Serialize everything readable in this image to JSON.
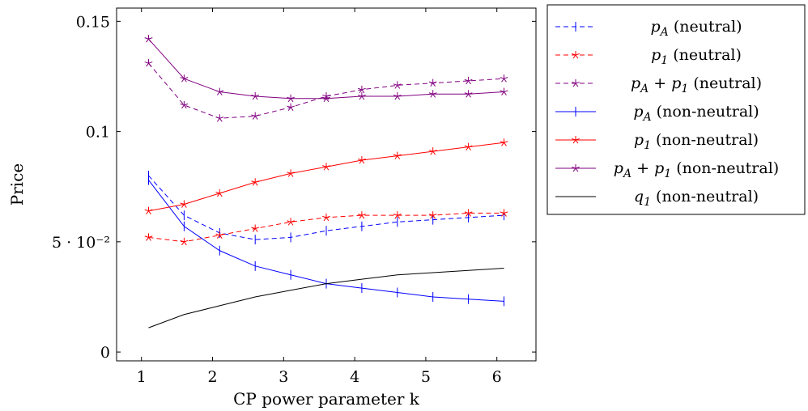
{
  "chart_data": {
    "type": "line",
    "title": "",
    "xlabel": "CP power parameter k",
    "ylabel": "Price",
    "xlim": [
      0.65,
      6.55
    ],
    "ylim": [
      -0.004,
      0.156
    ],
    "grid": false,
    "legend_position": "outside-top-right",
    "x_ticks": [
      1,
      2,
      3,
      4,
      5,
      6
    ],
    "x_tick_labels": [
      "1",
      "2",
      "3",
      "4",
      "5",
      "6"
    ],
    "y_ticks": [
      0,
      0.05,
      0.1,
      0.15
    ],
    "y_tick_labels": [
      "0",
      "5 · 10⁻²",
      "0.1",
      "0.15"
    ],
    "x": [
      1.1,
      1.6,
      2.1,
      2.6,
      3.1,
      3.6,
      4.1,
      4.6,
      5.1,
      5.6,
      6.1
    ],
    "series": [
      {
        "name": "p_A (neutral)",
        "legend_main": "p",
        "legend_sub": "A",
        "legend_rest": " (neutral)",
        "color": "#0000ff",
        "dash": true,
        "marker": "vbar",
        "values": [
          0.08,
          0.062,
          0.054,
          0.051,
          0.052,
          0.055,
          0.057,
          0.059,
          0.06,
          0.061,
          0.062
        ]
      },
      {
        "name": "p_1 (neutral)",
        "legend_main": "p",
        "legend_sub": "1",
        "legend_rest": " (neutral)",
        "color": "#ff0000",
        "dash": true,
        "marker": "star",
        "values": [
          0.052,
          0.05,
          0.053,
          0.056,
          0.059,
          0.061,
          0.062,
          0.062,
          0.062,
          0.063,
          0.063
        ]
      },
      {
        "name": "p_A + p_1 (neutral)",
        "legend_main": "p",
        "legend_sub": "A",
        "legend_rest": " + ",
        "legend_main2": "p",
        "legend_sub2": "1",
        "legend_rest2": " (neutral)",
        "color": "#800080",
        "dash": true,
        "marker": "star",
        "values": [
          0.131,
          0.112,
          0.106,
          0.107,
          0.111,
          0.116,
          0.119,
          0.121,
          0.122,
          0.123,
          0.124
        ]
      },
      {
        "name": "p_A (non-neutral)",
        "legend_main": "p",
        "legend_sub": "A",
        "legend_rest": " (non-neutral)",
        "color": "#0000ff",
        "dash": false,
        "marker": "vbar",
        "values": [
          0.078,
          0.057,
          0.046,
          0.039,
          0.035,
          0.031,
          0.029,
          0.027,
          0.025,
          0.024,
          0.023
        ]
      },
      {
        "name": "p_1 (non-neutral)",
        "legend_main": "p",
        "legend_sub": "1",
        "legend_rest": " (non-neutral)",
        "color": "#ff0000",
        "dash": false,
        "marker": "star",
        "values": [
          0.064,
          0.067,
          0.072,
          0.077,
          0.081,
          0.084,
          0.087,
          0.089,
          0.091,
          0.093,
          0.095
        ]
      },
      {
        "name": "p_A + p_1 (non-neutral)",
        "legend_main": "p",
        "legend_sub": "A",
        "legend_rest": " + ",
        "legend_main2": "p",
        "legend_sub2": "1",
        "legend_rest2": " (non-neutral)",
        "color": "#800080",
        "dash": false,
        "marker": "star",
        "values": [
          0.142,
          0.124,
          0.118,
          0.116,
          0.115,
          0.115,
          0.116,
          0.116,
          0.117,
          0.117,
          0.118
        ]
      },
      {
        "name": "q_1 (non-neutral)",
        "legend_main": "q",
        "legend_sub": "1",
        "legend_rest": " (non-neutral)",
        "color": "#000000",
        "dash": false,
        "marker": "none",
        "values": [
          0.011,
          0.017,
          0.021,
          0.025,
          0.028,
          0.031,
          0.033,
          0.035,
          0.036,
          0.037,
          0.038
        ]
      }
    ]
  }
}
